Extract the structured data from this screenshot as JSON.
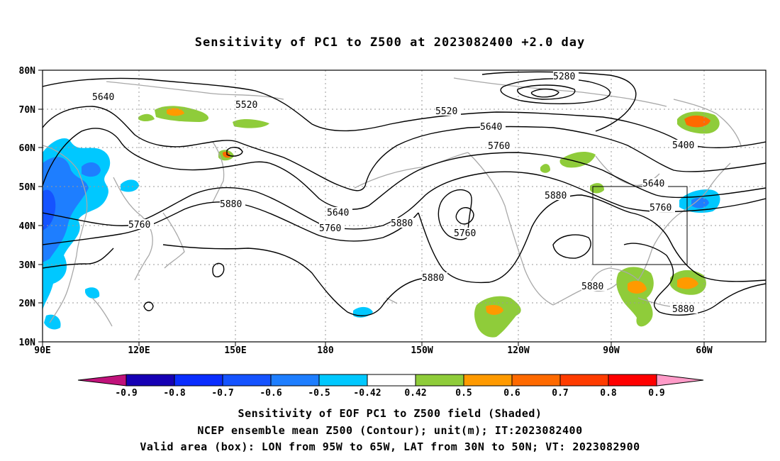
{
  "title": "Sensitivity of PC1 to Z500 at 2023082400 +2.0 day",
  "footer": {
    "line1": "Sensitivity of EOF PC1 to Z500 field (Shaded)",
    "line2": "NCEP ensemble mean Z500 (Contour); unit(m); IT:2023082400",
    "line3": "Valid area (box): LON from 95W to 65W, LAT from 30N to 50N; VT: 2023082900"
  },
  "map": {
    "lon_labels": [
      "90E",
      "120E",
      "150E",
      "180",
      "150W",
      "120W",
      "90W",
      "60W"
    ],
    "lat_labels": [
      "80N",
      "70N",
      "60N",
      "50N",
      "40N",
      "30N",
      "20N",
      "10N"
    ],
    "valid_box": {
      "lon_min": -95,
      "lon_max": -65,
      "lat_min": 30,
      "lat_max": 50
    },
    "contour_labels": [
      "5280",
      "5400",
      "5520",
      "5520",
      "5640",
      "5640",
      "5640",
      "5640",
      "5760",
      "5760",
      "5760",
      "5760",
      "5760",
      "5880",
      "5880",
      "5880",
      "5880",
      "5880",
      "5880"
    ]
  },
  "colorbar": {
    "labels": [
      "-0.9",
      "-0.8",
      "-0.7",
      "-0.6",
      "-0.5",
      "-0.42",
      "0.42",
      "0.5",
      "0.6",
      "0.7",
      "0.8",
      "0.9"
    ],
    "colors": [
      "#1600b4",
      "#0a2dff",
      "#1553ff",
      "#1e7eff",
      "#00c8ff",
      "#ffffff",
      "#8fcc3a",
      "#ff9a00",
      "#ff6a00",
      "#ff3c00",
      "#ff0000"
    ],
    "low_end_color": "#c0127a",
    "high_end_color": "#ff9bc8"
  },
  "colors": {
    "coast": "#a8a8a8",
    "contour": "#000000",
    "grid": "#9a9a9a"
  }
}
